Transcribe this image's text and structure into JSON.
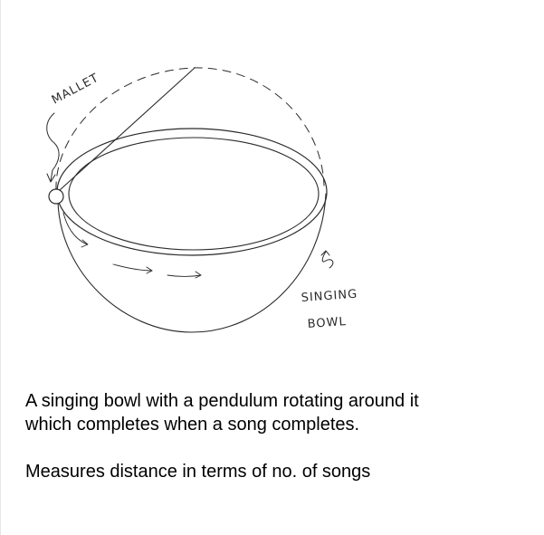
{
  "sketch": {
    "labels": {
      "mallet": "MALLET",
      "singing": "SINGING",
      "bowl": "BOWL"
    },
    "ink_color": "#2a2a2a"
  },
  "caption": {
    "line1": "A singing bowl with a pendulum rotating around it",
    "line2": "which completes when a song completes.",
    "line3": "Measures distance in terms of no. of songs"
  }
}
